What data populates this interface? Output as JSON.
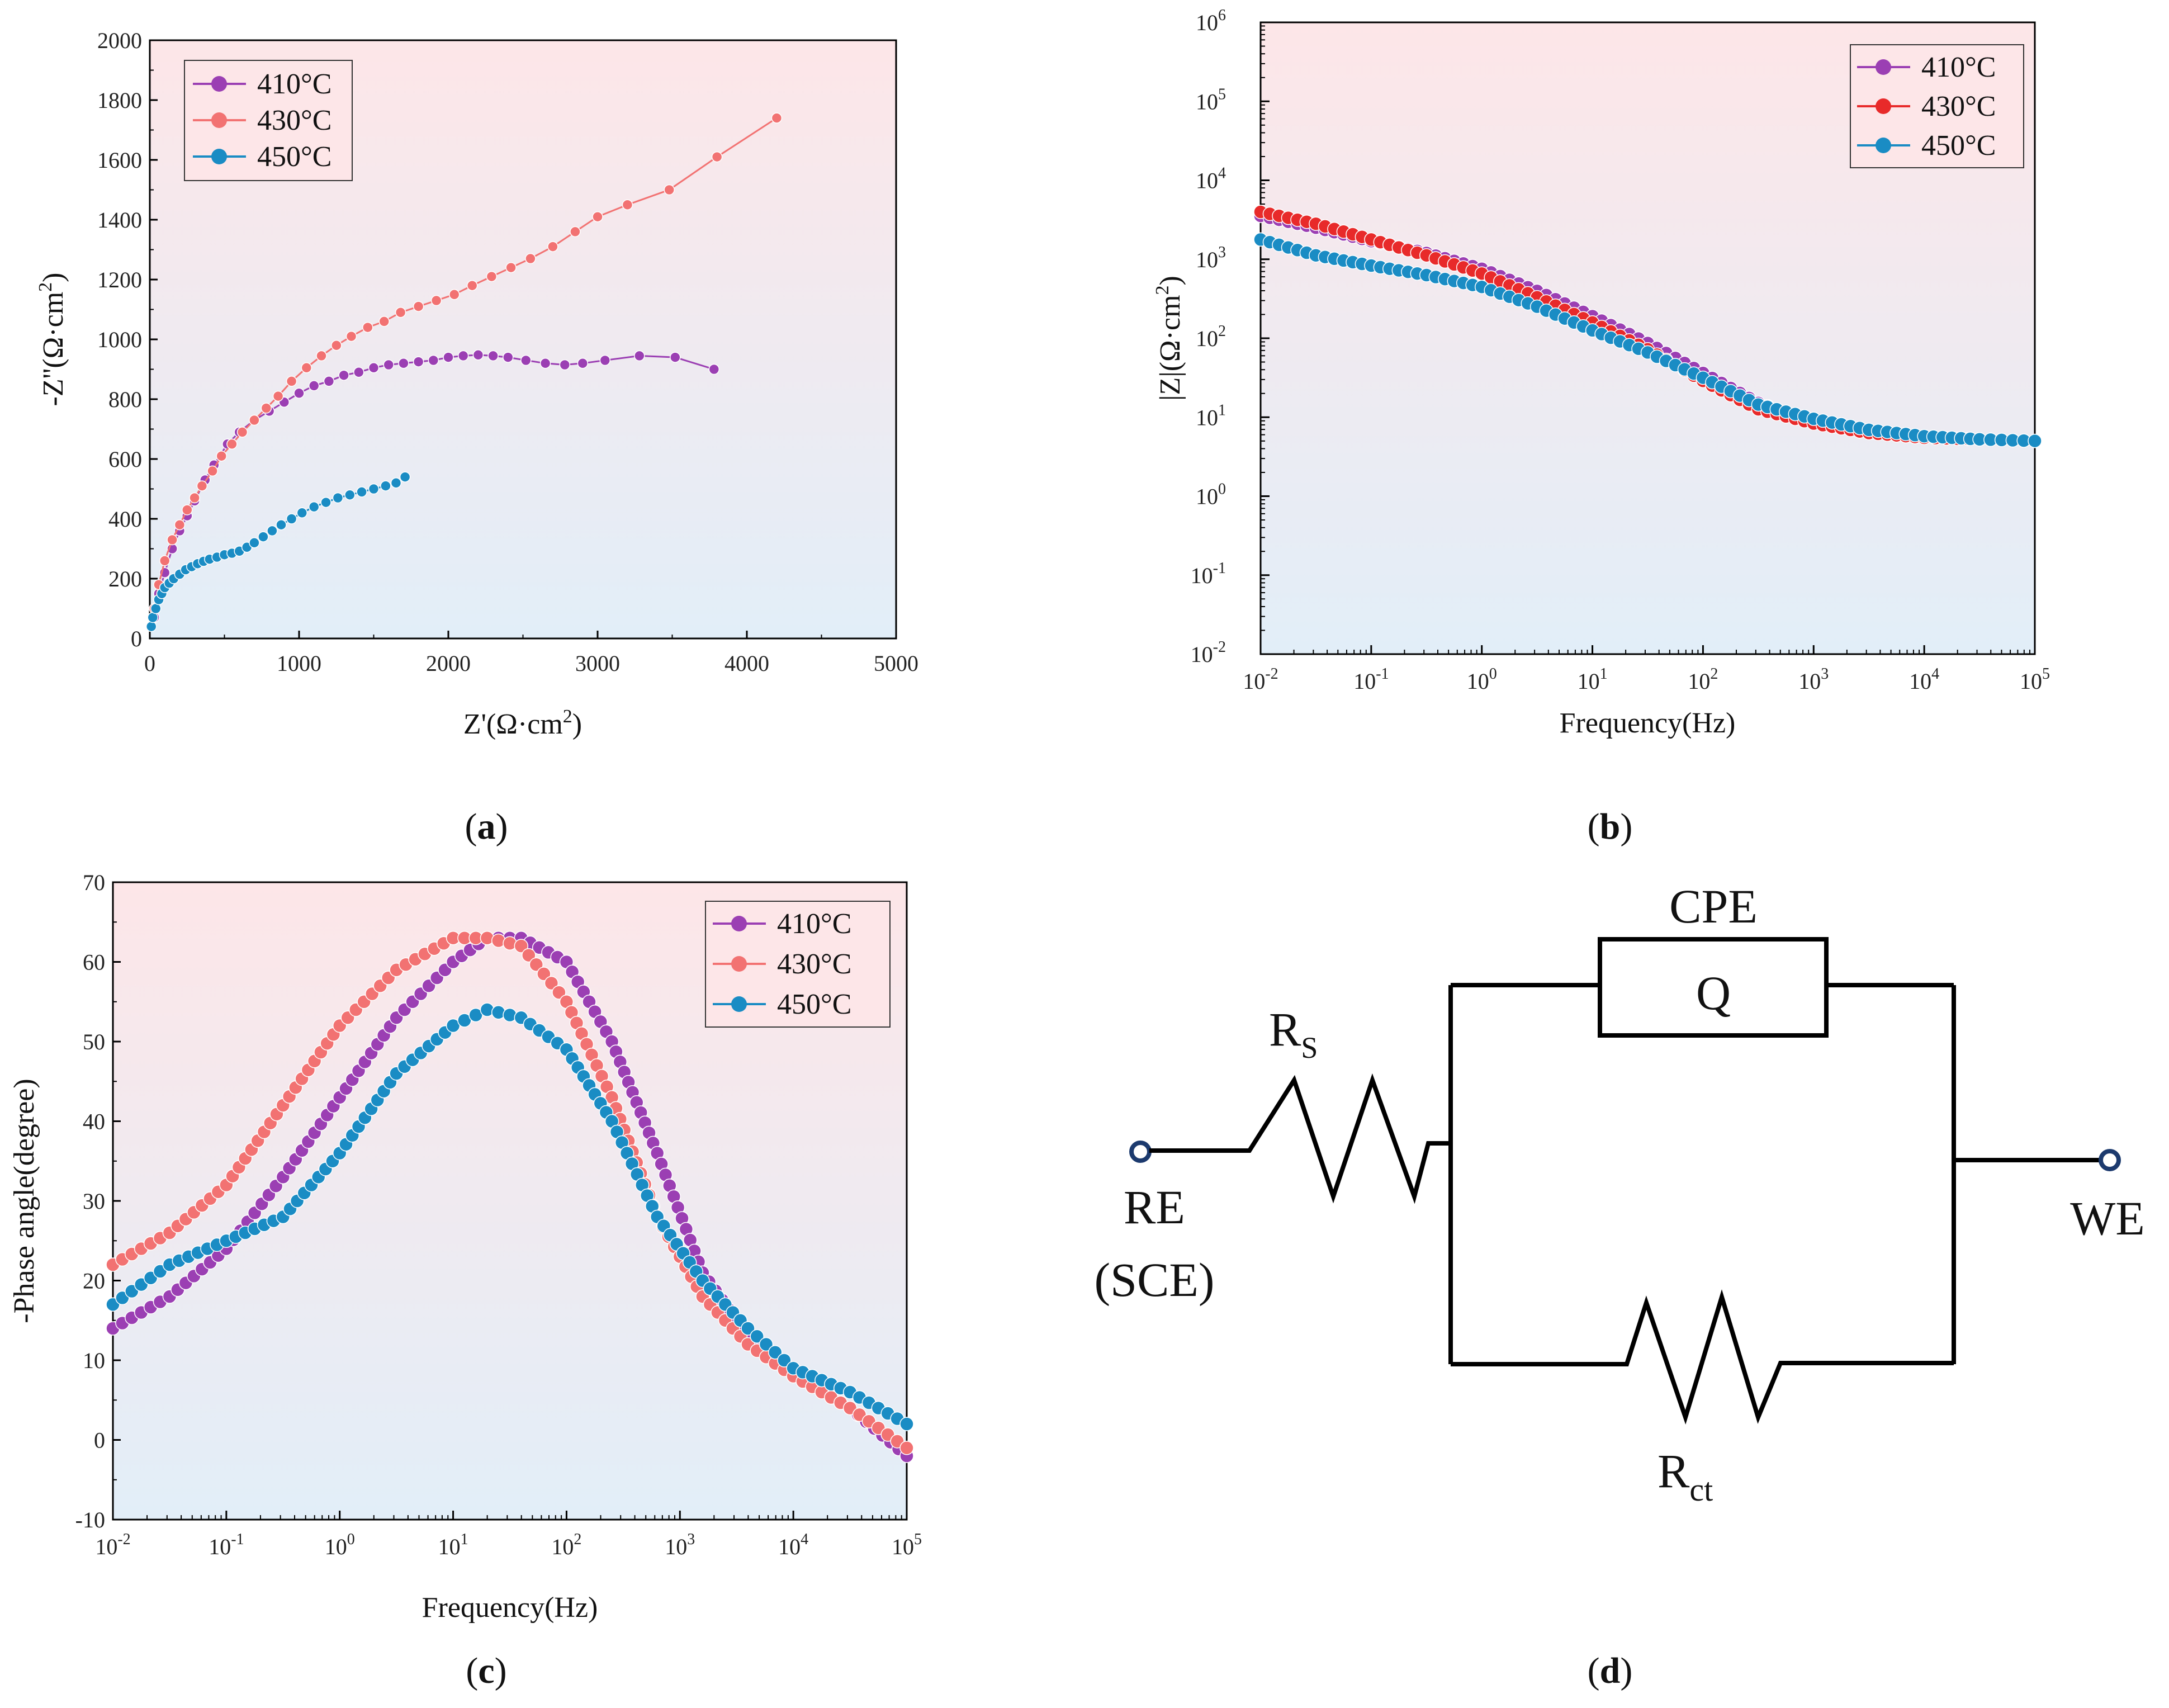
{
  "colors": {
    "s410": "#9b3fb3",
    "s430": "#f27272",
    "s430b": "#e82a2a",
    "s450": "#1a8cc4",
    "bg_top": "#fde6e8",
    "bg_bottom": "#e2eef8"
  },
  "chart_data": [
    {
      "id": "a",
      "type": "scatter",
      "caption": "a",
      "title": "",
      "xlabel": "Z'(Ω·cm",
      "xlabel_sup": "2",
      "xlabel_end": ")",
      "ylabel": "-Z''(Ω·cm",
      "ylabel_sup": "2",
      "ylabel_end": ")",
      "xlim": [
        0,
        5000
      ],
      "ylim": [
        0,
        2000
      ],
      "x_ticks": [
        "0",
        "1000",
        "2000",
        "3000",
        "4000",
        "5000"
      ],
      "y_ticks": [
        "0",
        "200",
        "400",
        "600",
        "800",
        "1000",
        "1200",
        "1400",
        "1600",
        "1800",
        "2000"
      ],
      "legend_position": "top-left",
      "series": [
        {
          "name": "410°C",
          "x": [
            30,
            60,
            100,
            150,
            200,
            250,
            300,
            370,
            430,
            520,
            600,
            700,
            800,
            900,
            1000,
            1100,
            1200,
            1300,
            1400,
            1500,
            1600,
            1700,
            1800,
            1900,
            2000,
            2100,
            2200,
            2300,
            2400,
            2520,
            2650,
            2780,
            2900,
            3050,
            3280,
            3520,
            3780
          ],
          "y": [
            70,
            150,
            220,
            300,
            360,
            410,
            460,
            530,
            580,
            650,
            690,
            730,
            760,
            790,
            820,
            845,
            860,
            880,
            890,
            905,
            915,
            920,
            925,
            930,
            940,
            945,
            948,
            945,
            940,
            930,
            920,
            915,
            920,
            930,
            945,
            940,
            900
          ]
        },
        {
          "name": "430°C",
          "x": [
            30,
            60,
            100,
            150,
            200,
            250,
            300,
            350,
            420,
            480,
            550,
            620,
            700,
            780,
            860,
            950,
            1050,
            1150,
            1250,
            1350,
            1460,
            1570,
            1680,
            1800,
            1920,
            2040,
            2160,
            2290,
            2420,
            2550,
            2700,
            2850,
            3000,
            3200,
            3480,
            3800,
            4200
          ],
          "y": [
            100,
            180,
            260,
            330,
            380,
            430,
            470,
            510,
            560,
            610,
            650,
            690,
            730,
            770,
            810,
            860,
            905,
            945,
            980,
            1010,
            1040,
            1060,
            1090,
            1110,
            1130,
            1150,
            1180,
            1210,
            1240,
            1270,
            1310,
            1360,
            1410,
            1450,
            1500,
            1610,
            1740
          ]
        },
        {
          "name": "450°C",
          "x": [
            10,
            20,
            40,
            60,
            80,
            100,
            130,
            160,
            200,
            240,
            280,
            320,
            360,
            400,
            450,
            500,
            550,
            600,
            650,
            700,
            760,
            820,
            880,
            950,
            1020,
            1100,
            1180,
            1260,
            1340,
            1420,
            1500,
            1580,
            1650,
            1710
          ],
          "y": [
            40,
            70,
            100,
            130,
            150,
            170,
            185,
            200,
            215,
            230,
            240,
            250,
            258,
            265,
            272,
            280,
            285,
            292,
            305,
            320,
            340,
            360,
            380,
            400,
            420,
            440,
            455,
            470,
            480,
            490,
            500,
            510,
            520,
            540
          ]
        }
      ]
    },
    {
      "id": "b",
      "type": "scatter",
      "caption": "b",
      "title": "",
      "xlabel": "Frequency(Hz)",
      "ylabel": "|Z|(Ω·cm",
      "ylabel_sup": "2",
      "ylabel_end": ")",
      "x_scale": "log",
      "y_scale": "log",
      "xlim_log10": [
        -2,
        5
      ],
      "ylim_log10": [
        -2,
        6
      ],
      "x_tick_exps": [
        "-2",
        "-1",
        "0",
        "1",
        "2",
        "3",
        "4",
        "5"
      ],
      "y_tick_exps": [
        "-2",
        "-1",
        "0",
        "1",
        "2",
        "3",
        "4",
        "5",
        "6"
      ],
      "tick_base": "10",
      "legend_position": "top-right",
      "series": [
        {
          "name": "410°C",
          "log10_freq": [
            -2,
            -1.5,
            -1,
            -0.5,
            0,
            0.5,
            1,
            1.5,
            2,
            2.5,
            3,
            3.5,
            4,
            4.5,
            5
          ],
          "log10_z": [
            3.55,
            3.4,
            3.23,
            3.08,
            2.88,
            2.6,
            2.28,
            1.94,
            1.56,
            1.18,
            0.94,
            0.8,
            0.74,
            0.72,
            0.7
          ]
        },
        {
          "name": "430°C",
          "log10_freq": [
            -2,
            -1.5,
            -1,
            -0.5,
            0,
            0.5,
            1,
            1.5,
            2,
            2.5,
            3,
            3.5,
            4,
            4.5,
            5
          ],
          "log10_z": [
            3.6,
            3.45,
            3.25,
            3.05,
            2.82,
            2.52,
            2.2,
            1.86,
            1.46,
            1.1,
            0.92,
            0.8,
            0.74,
            0.72,
            0.7
          ]
        },
        {
          "name": "450°C",
          "log10_freq": [
            -2,
            -1.5,
            -1,
            -0.5,
            0,
            0.5,
            1,
            1.5,
            2,
            2.5,
            3,
            3.5,
            4,
            4.5,
            5
          ],
          "log10_z": [
            3.25,
            3.05,
            2.92,
            2.8,
            2.65,
            2.4,
            2.1,
            1.82,
            1.5,
            1.16,
            0.98,
            0.84,
            0.76,
            0.72,
            0.7
          ]
        }
      ]
    },
    {
      "id": "c",
      "type": "scatter",
      "caption": "c",
      "title": "",
      "xlabel": "Frequency(Hz)",
      "ylabel": "-Phase angle(degree)",
      "x_scale": "log",
      "xlim_log10": [
        -2,
        5
      ],
      "ylim": [
        -10,
        70
      ],
      "x_tick_exps": [
        "-2",
        "-1",
        "0",
        "1",
        "2",
        "3",
        "4",
        "5"
      ],
      "y_ticks": [
        "-10",
        "0",
        "10",
        "20",
        "30",
        "40",
        "50",
        "60",
        "70"
      ],
      "tick_base": "10",
      "legend_position": "top-right",
      "series": [
        {
          "name": "410°C",
          "log10_freq": [
            -2,
            -1.5,
            -1,
            -0.5,
            0,
            0.5,
            1,
            1.3,
            1.6,
            2,
            2.4,
            2.8,
            3.2,
            3.6,
            4,
            4.5,
            5
          ],
          "y": [
            14,
            18,
            24,
            33,
            43,
            53,
            60,
            63,
            63,
            60,
            50,
            36,
            21,
            13,
            8,
            4,
            -2
          ]
        },
        {
          "name": "430°C",
          "log10_freq": [
            -2,
            -1.5,
            -1,
            -0.5,
            0,
            0.5,
            1,
            1.3,
            1.6,
            2,
            2.4,
            2.8,
            3.2,
            3.6,
            4,
            4.5,
            5
          ],
          "y": [
            22,
            26,
            32,
            42,
            52,
            59,
            63,
            63,
            62,
            55,
            43,
            28,
            18,
            12,
            8,
            4,
            -1
          ]
        },
        {
          "name": "450°C",
          "log10_freq": [
            -2,
            -1.5,
            -1,
            -0.5,
            0,
            0.5,
            1,
            1.3,
            1.6,
            2,
            2.4,
            2.8,
            3.2,
            3.6,
            4,
            4.5,
            5
          ],
          "y": [
            17,
            22,
            25,
            28,
            36,
            46,
            52,
            54,
            53,
            49,
            40,
            28,
            20,
            14,
            9,
            6,
            2
          ]
        }
      ]
    }
  ],
  "circuit": {
    "caption": "d",
    "cpe_label": "CPE",
    "q_label": "Q",
    "rs_label": "R",
    "rs_sub": "S",
    "rct_label": "R",
    "rct_sub": "ct",
    "re_label": "RE",
    "sce_label": "(SCE)",
    "we_label": "WE"
  }
}
